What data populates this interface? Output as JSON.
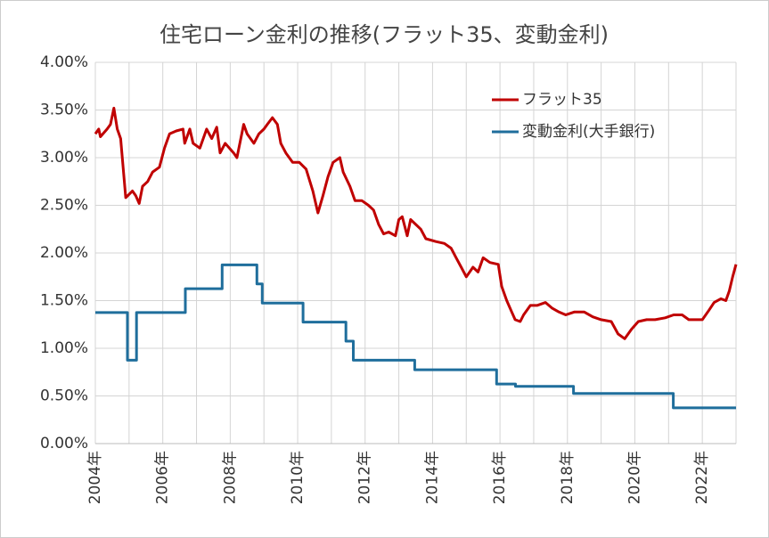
{
  "chart_data": {
    "type": "line",
    "title": "住宅ローン金利の推移(フラット35、変動金利)",
    "xlim": [
      2004,
      2023
    ],
    "xticks": [
      {
        "value": 2004,
        "label": "2004年"
      },
      {
        "value": 2006,
        "label": "2006年"
      },
      {
        "value": 2008,
        "label": "2008年"
      },
      {
        "value": 2010,
        "label": "2010年"
      },
      {
        "value": 2012,
        "label": "2012年"
      },
      {
        "value": 2014,
        "label": "2014年"
      },
      {
        "value": 2016,
        "label": "2016年"
      },
      {
        "value": 2018,
        "label": "2018年"
      },
      {
        "value": 2020,
        "label": "2020年"
      },
      {
        "value": 2022,
        "label": "2022年"
      }
    ],
    "xgrid": [
      2005,
      2007,
      2009,
      2011,
      2013,
      2015,
      2017,
      2019,
      2021,
      2023
    ],
    "ylim": [
      0,
      4
    ],
    "yticks": [
      {
        "value": 0,
        "label": "0.00%"
      },
      {
        "value": 0.5,
        "label": "0.50%"
      },
      {
        "value": 1,
        "label": "1.00%"
      },
      {
        "value": 1.5,
        "label": "1.50%"
      },
      {
        "value": 2,
        "label": "2.00%"
      },
      {
        "value": 2.5,
        "label": "2.50%"
      },
      {
        "value": 3,
        "label": "3.00%"
      },
      {
        "value": 3.5,
        "label": "3.50%"
      },
      {
        "value": 4,
        "label": "4.00%"
      }
    ],
    "grid": true,
    "legend": "upper right",
    "series": [
      {
        "name": "フラット35",
        "color": "#c00000",
        "x": [
          2004.0,
          2004.1,
          2004.15,
          2004.35,
          2004.45,
          2004.55,
          2004.65,
          2004.75,
          2004.9,
          2005.1,
          2005.2,
          2005.3,
          2005.4,
          2005.55,
          2005.7,
          2005.9,
          2006.05,
          2006.2,
          2006.4,
          2006.6,
          2006.65,
          2006.8,
          2006.9,
          2007.1,
          2007.3,
          2007.45,
          2007.6,
          2007.7,
          2007.85,
          2008.1,
          2008.2,
          2008.4,
          2008.5,
          2008.7,
          2008.85,
          2009.0,
          2009.1,
          2009.25,
          2009.4,
          2009.5,
          2009.65,
          2009.85,
          2010.05,
          2010.25,
          2010.45,
          2010.6,
          2010.75,
          2010.9,
          2011.05,
          2011.25,
          2011.35,
          2011.55,
          2011.7,
          2011.9,
          2012.1,
          2012.25,
          2012.4,
          2012.55,
          2012.7,
          2012.9,
          2013.0,
          2013.1,
          2013.25,
          2013.35,
          2013.5,
          2013.65,
          2013.8,
          2014.1,
          2014.35,
          2014.55,
          2014.7,
          2014.85,
          2015.0,
          2015.2,
          2015.35,
          2015.5,
          2015.7,
          2015.95,
          2016.05,
          2016.2,
          2016.35,
          2016.45,
          2016.6,
          2016.7,
          2016.9,
          2017.1,
          2017.35,
          2017.55,
          2017.75,
          2017.95,
          2018.2,
          2018.5,
          2018.75,
          2019.0,
          2019.3,
          2019.5,
          2019.7,
          2019.9,
          2020.1,
          2020.35,
          2020.6,
          2020.9,
          2021.15,
          2021.4,
          2021.6,
          2021.8,
          2022.0,
          2022.2,
          2022.35,
          2022.55,
          2022.7,
          2022.8,
          2022.9,
          2023.0
        ],
        "values": [
          3.25,
          3.3,
          3.22,
          3.3,
          3.35,
          3.52,
          3.3,
          3.2,
          2.58,
          2.65,
          2.6,
          2.52,
          2.7,
          2.75,
          2.85,
          2.9,
          3.1,
          3.25,
          3.28,
          3.3,
          3.15,
          3.3,
          3.15,
          3.1,
          3.3,
          3.2,
          3.32,
          3.05,
          3.15,
          3.05,
          3.0,
          3.35,
          3.25,
          3.15,
          3.25,
          3.3,
          3.35,
          3.42,
          3.35,
          3.15,
          3.05,
          2.95,
          2.95,
          2.88,
          2.65,
          2.42,
          2.6,
          2.8,
          2.95,
          3.0,
          2.85,
          2.7,
          2.55,
          2.55,
          2.5,
          2.45,
          2.3,
          2.2,
          2.22,
          2.18,
          2.35,
          2.38,
          2.18,
          2.35,
          2.3,
          2.25,
          2.15,
          2.12,
          2.1,
          2.05,
          1.95,
          1.85,
          1.75,
          1.85,
          1.8,
          1.95,
          1.9,
          1.88,
          1.65,
          1.5,
          1.38,
          1.3,
          1.28,
          1.35,
          1.45,
          1.45,
          1.48,
          1.42,
          1.38,
          1.35,
          1.38,
          1.38,
          1.33,
          1.3,
          1.28,
          1.15,
          1.1,
          1.2,
          1.28,
          1.3,
          1.3,
          1.32,
          1.35,
          1.35,
          1.3,
          1.3,
          1.3,
          1.4,
          1.48,
          1.52,
          1.5,
          1.6,
          1.75,
          1.88
        ]
      },
      {
        "name": "変動金利(大手銀行)",
        "color": "#1f6e9c",
        "x": [
          2004.0,
          2004.95,
          2004.95,
          2005.22,
          2005.22,
          2006.67,
          2006.67,
          2007.76,
          2007.76,
          2008.79,
          2008.79,
          2008.95,
          2008.95,
          2010.16,
          2010.16,
          2011.43,
          2011.43,
          2011.65,
          2011.65,
          2013.47,
          2013.47,
          2015.9,
          2015.9,
          2016.46,
          2016.46,
          2018.18,
          2018.18,
          2021.14,
          2021.14,
          2023.0
        ],
        "values": [
          1.375,
          1.375,
          0.875,
          0.875,
          1.375,
          1.375,
          1.625,
          1.625,
          1.875,
          1.875,
          1.675,
          1.675,
          1.475,
          1.475,
          1.275,
          1.275,
          1.075,
          1.075,
          0.875,
          0.875,
          0.775,
          0.775,
          0.625,
          0.625,
          0.6,
          0.6,
          0.525,
          0.525,
          0.375,
          0.375
        ]
      }
    ]
  }
}
